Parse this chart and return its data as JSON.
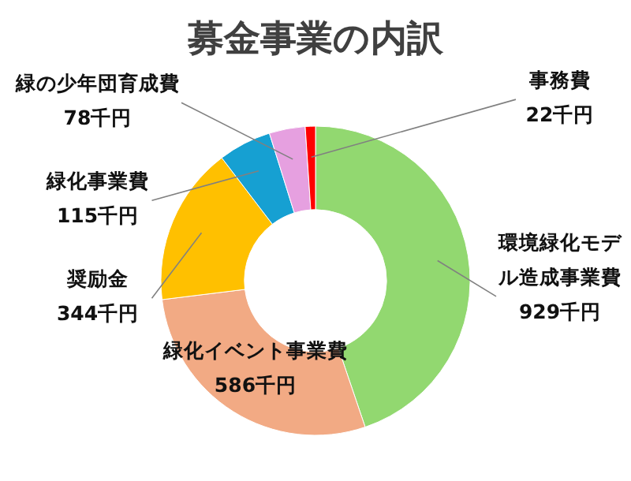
{
  "chart_data": {
    "type": "donut",
    "title": "募金事業の内訳",
    "categories": [
      "環境緑化モデル造成事業費",
      "緑化イベント事業費",
      "奨励金",
      "緑化事業費",
      "緑の少年団育成費",
      "事務費"
    ],
    "values": [
      929,
      586,
      344,
      115,
      78,
      22
    ],
    "value_labels": [
      "929千円",
      "586千円",
      "344千円",
      "115千円",
      "78千円",
      "22千円"
    ],
    "colors": [
      "#92d870",
      "#f2aa84",
      "#ffc000",
      "#16a0d2",
      "#e6a0e0",
      "#ff0000"
    ],
    "legend": false
  }
}
